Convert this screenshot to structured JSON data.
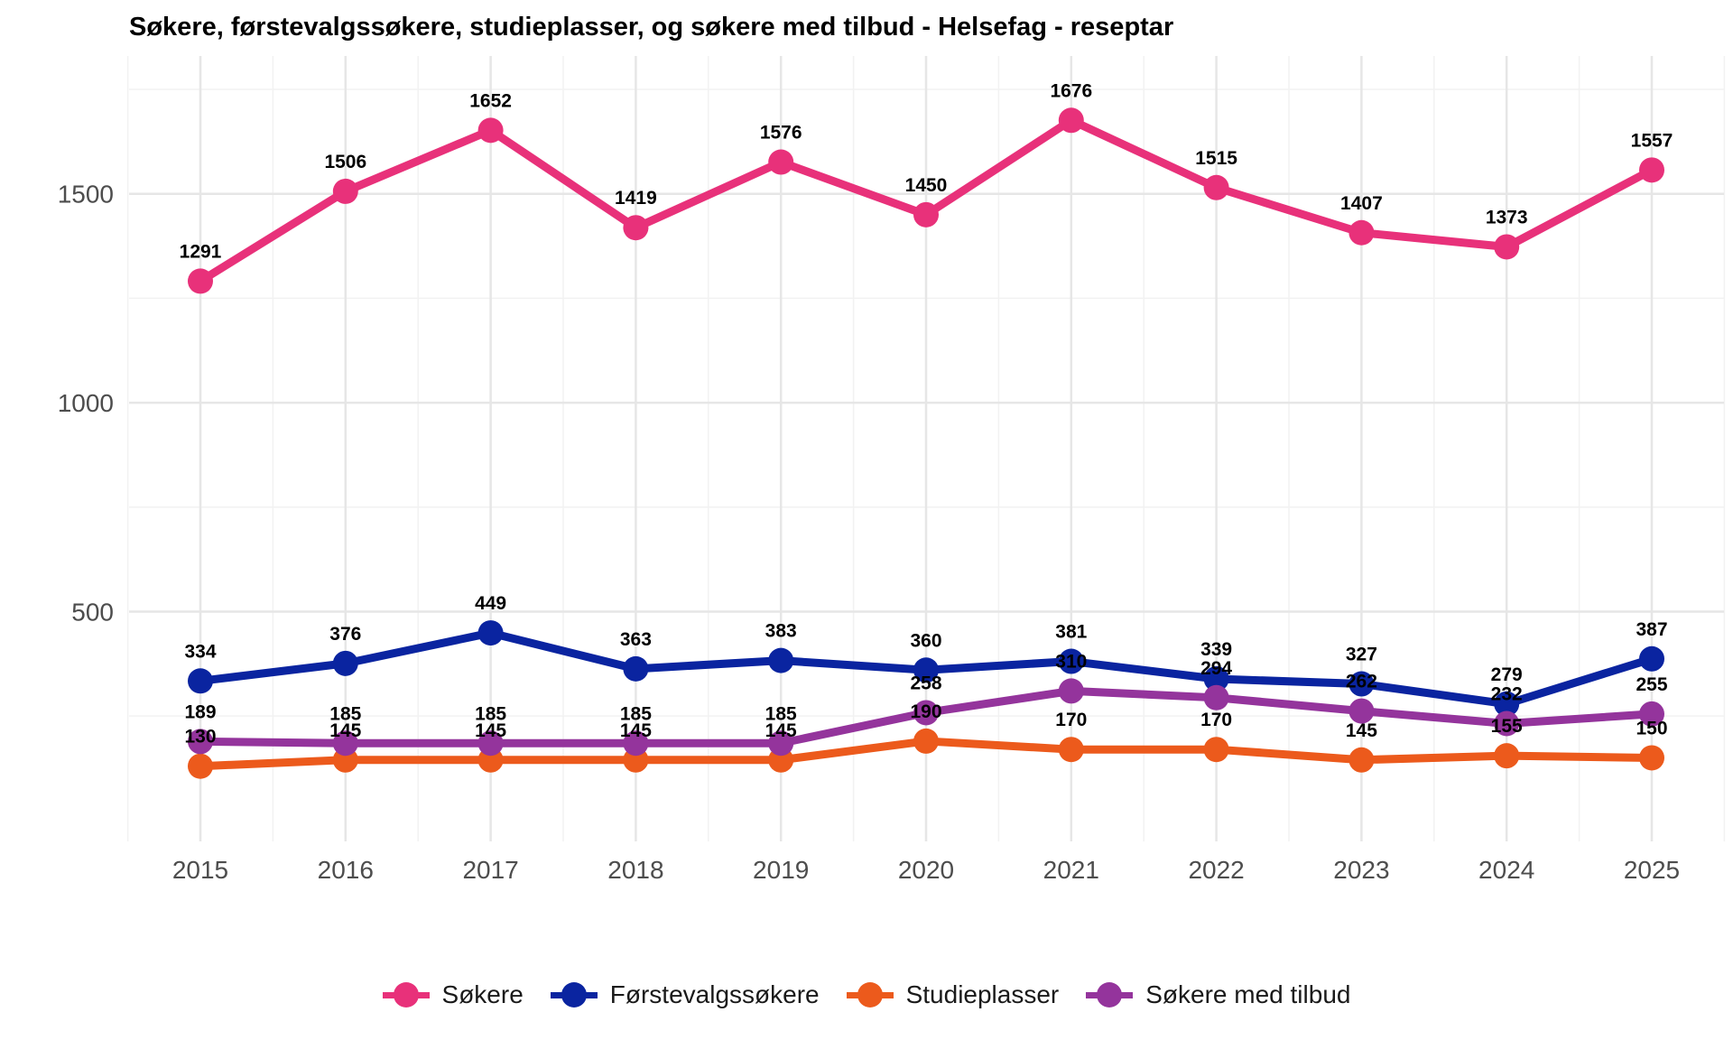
{
  "chart_data": {
    "type": "line",
    "title": "Søkere, førstevalgssøkere, studieplasser, og søkere med tilbud - Helsefag - reseptar",
    "xlabel": "",
    "ylabel": "",
    "x": [
      "2015",
      "2016",
      "2017",
      "2018",
      "2019",
      "2020",
      "2021",
      "2022",
      "2023",
      "2024",
      "2025"
    ],
    "ylim": [
      -50,
      1830
    ],
    "yticks": [
      500,
      1000,
      1500
    ],
    "grid": true,
    "legend_position": "bottom",
    "series": [
      {
        "name": "Søkere",
        "color": "#E8317A",
        "values": [
          1291,
          1506,
          1652,
          1419,
          1576,
          1450,
          1676,
          1515,
          1407,
          1373,
          1557
        ]
      },
      {
        "name": "Førstevalgssøkere",
        "color": "#0A24A0",
        "values": [
          334,
          376,
          449,
          363,
          383,
          360,
          381,
          339,
          327,
          279,
          387
        ]
      },
      {
        "name": "Studieplasser",
        "color": "#EC5A1C",
        "values": [
          130,
          145,
          145,
          145,
          145,
          190,
          170,
          170,
          145,
          155,
          150
        ]
      },
      {
        "name": "Søkere med tilbud",
        "color": "#94349C",
        "values": [
          189,
          185,
          185,
          185,
          185,
          258,
          310,
          294,
          262,
          232,
          255
        ]
      }
    ]
  }
}
